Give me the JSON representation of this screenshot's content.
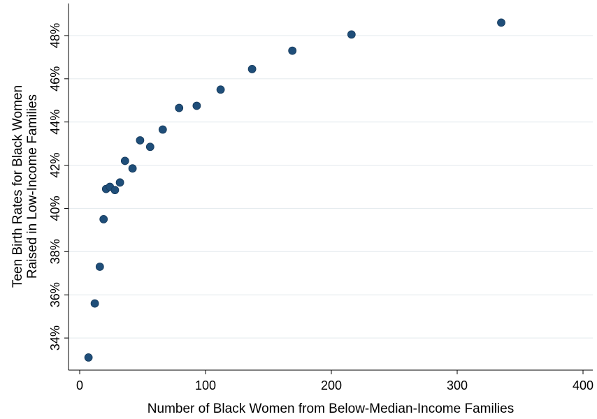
{
  "chart_data": {
    "type": "scatter",
    "title": "",
    "xlabel": "Number of Black Women from Below-Median-Income Families",
    "ylabel_line1": "Teen Birth Rates for Black Women",
    "ylabel_line2": "Raised in Low-Income Families",
    "xlim": [
      0,
      400
    ],
    "ylim": [
      33.0,
      49.0
    ],
    "x_ticks": [
      0,
      100,
      200,
      300,
      400
    ],
    "x_tick_labels": [
      "0",
      "100",
      "200",
      "300",
      "400"
    ],
    "y_ticks": [
      34,
      36,
      38,
      40,
      42,
      44,
      46,
      48
    ],
    "y_tick_labels": [
      "34%",
      "36%",
      "38%",
      "40%",
      "42%",
      "44%",
      "46%",
      "48%"
    ],
    "grid": "horizontal",
    "marker_color": "#1f4e79",
    "gridline_color": "#e6ecef",
    "points": [
      {
        "x": 7,
        "y": 33.1
      },
      {
        "x": 12,
        "y": 35.6
      },
      {
        "x": 16,
        "y": 37.3
      },
      {
        "x": 19,
        "y": 39.5
      },
      {
        "x": 21,
        "y": 40.9
      },
      {
        "x": 24,
        "y": 41.0
      },
      {
        "x": 28,
        "y": 40.85
      },
      {
        "x": 32,
        "y": 41.2
      },
      {
        "x": 36,
        "y": 42.2
      },
      {
        "x": 42,
        "y": 41.85
      },
      {
        "x": 48,
        "y": 43.15
      },
      {
        "x": 56,
        "y": 42.85
      },
      {
        "x": 66,
        "y": 43.65
      },
      {
        "x": 79,
        "y": 44.65
      },
      {
        "x": 93,
        "y": 44.75
      },
      {
        "x": 112,
        "y": 45.5
      },
      {
        "x": 137,
        "y": 46.45
      },
      {
        "x": 169,
        "y": 47.3
      },
      {
        "x": 216,
        "y": 48.05
      },
      {
        "x": 335,
        "y": 48.6
      }
    ]
  }
}
